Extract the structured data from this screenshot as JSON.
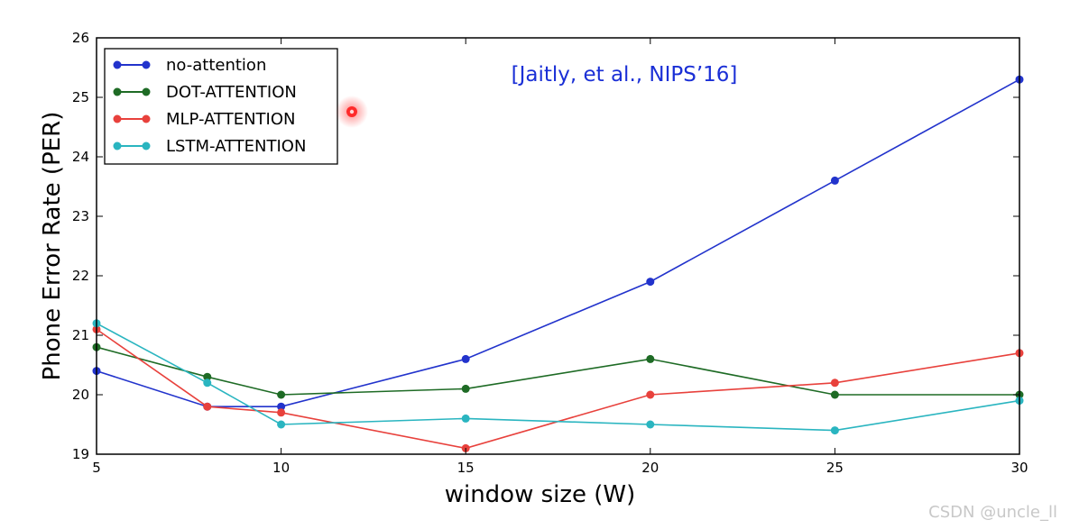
{
  "chart_data": {
    "type": "line",
    "xlabel": "window size (W)",
    "ylabel": "Phone Error Rate (PER)",
    "xlim": [
      5,
      30
    ],
    "ylim": [
      19,
      26
    ],
    "xticks": [
      5,
      10,
      15,
      20,
      25,
      30
    ],
    "yticks": [
      19,
      20,
      21,
      22,
      23,
      24,
      25,
      26
    ],
    "legend_position": "top-left",
    "x": [
      5,
      8,
      10,
      15,
      20,
      25,
      30
    ],
    "series": [
      {
        "name": "no-attention",
        "color": "#2233cc",
        "values": [
          20.4,
          19.8,
          19.8,
          20.6,
          21.9,
          23.6,
          25.3
        ]
      },
      {
        "name": "DOT-ATTENTION",
        "color": "#1e6b25",
        "values": [
          20.8,
          20.3,
          20.0,
          20.1,
          20.6,
          20.0,
          20.0
        ]
      },
      {
        "name": "MLP-ATTENTION",
        "color": "#e8413c",
        "values": [
          21.1,
          19.8,
          19.7,
          19.1,
          20.0,
          20.2,
          20.7
        ]
      },
      {
        "name": "LSTM-ATTENTION",
        "color": "#2ab5c0",
        "values": [
          21.2,
          20.2,
          19.5,
          19.6,
          19.5,
          19.4,
          19.9
        ]
      }
    ],
    "annotation": {
      "text": "[Jaitly, et al., NIPS’16]",
      "color": "#1a2fd6"
    },
    "cursor_color": "#ff2a2a"
  },
  "watermark": "CSDN @uncle_ll"
}
